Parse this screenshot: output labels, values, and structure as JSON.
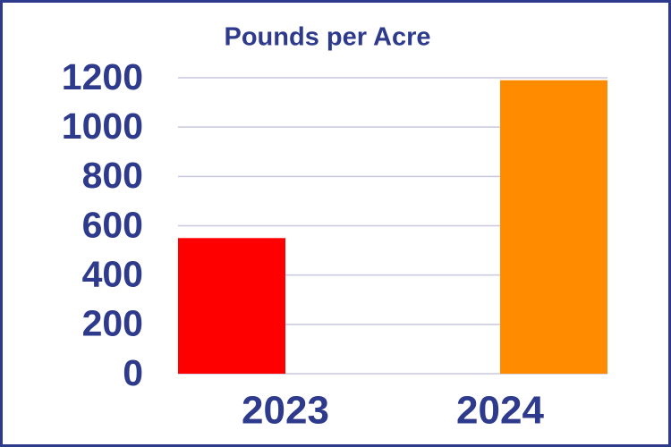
{
  "chart_data": {
    "type": "bar",
    "title": "Pounds per Acre",
    "categories": [
      "2023",
      "2024"
    ],
    "values": [
      550,
      1190
    ],
    "colors": [
      "#ff0000",
      "#ff8c00"
    ],
    "ylim": [
      0,
      1200
    ],
    "yticks": [
      0,
      200,
      400,
      600,
      800,
      1000,
      1200
    ],
    "grid": true
  }
}
